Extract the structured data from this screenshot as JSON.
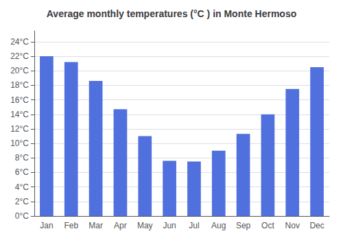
{
  "chart_data": {
    "type": "bar",
    "title": "Average monthly temperatures (°C ) in Monte Hermoso",
    "categories": [
      "Jan",
      "Feb",
      "Mar",
      "Apr",
      "May",
      "Jun",
      "Jul",
      "Aug",
      "Sep",
      "Oct",
      "Nov",
      "Dec"
    ],
    "values": [
      22.0,
      21.2,
      18.6,
      14.7,
      11.0,
      7.6,
      7.5,
      9.0,
      11.3,
      14.0,
      17.5,
      20.5
    ],
    "ylim": [
      0,
      25.5
    ],
    "yticks": [
      {
        "value": 0,
        "label": "0°C"
      },
      {
        "value": 2,
        "label": "2°C"
      },
      {
        "value": 4,
        "label": "4°C"
      },
      {
        "value": 6,
        "label": "6°C"
      },
      {
        "value": 8,
        "label": "8°C"
      },
      {
        "value": 10,
        "label": "10°C"
      },
      {
        "value": 12,
        "label": "12°C"
      },
      {
        "value": 14,
        "label": "14°C"
      },
      {
        "value": 16,
        "label": "16°C"
      },
      {
        "value": 18,
        "label": "18°C"
      },
      {
        "value": 20,
        "label": "20°C"
      },
      {
        "value": 22,
        "label": "22°C"
      },
      {
        "value": 24,
        "label": "24°C"
      }
    ],
    "grid": true
  }
}
